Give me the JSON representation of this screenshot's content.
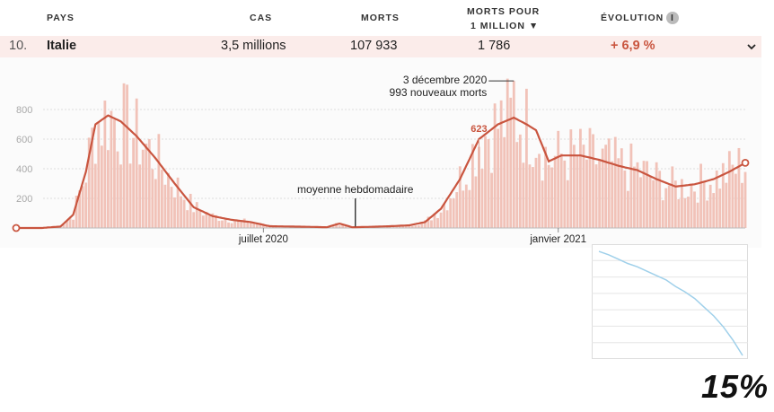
{
  "table": {
    "headers": {
      "country": "PAYS",
      "cases": "CAS",
      "deaths": "MORTS",
      "deaths_per_million_line1": "MORTS POUR",
      "deaths_per_million_line2": "1 MILLION ▼",
      "evolution": "ÉVOLUTION"
    },
    "row": {
      "rank": "10.",
      "country": "Italie",
      "cases": "3,5 millions",
      "deaths": "107 933",
      "deaths_per_million": "1 786",
      "evolution": "+ 6,9 %"
    }
  },
  "colors": {
    "bar": "#f1c2b8",
    "line": "#c9553f",
    "row_bg": "#fbecea",
    "evolution_text": "#c9553f",
    "mini_line": "#9fd0ea"
  },
  "chart_data": {
    "type": "bar",
    "y_ticks": [
      200,
      400,
      600,
      800
    ],
    "ylim": [
      0,
      1000
    ],
    "x_tick_labels": [
      "juillet 2020",
      "janvier 2021"
    ],
    "annotations": {
      "peak_date": "3 décembre 2020",
      "peak_text": "993 nouveaux morts",
      "peak_value": 993,
      "avg_label": "moyenne hebdomadaire",
      "avg_value_label": "623",
      "avg_value": 623
    },
    "weekly_average_points": [
      [
        0,
        0
      ],
      [
        8,
        0
      ],
      [
        14,
        10
      ],
      [
        18,
        90
      ],
      [
        22,
        380
      ],
      [
        25,
        700
      ],
      [
        29,
        760
      ],
      [
        33,
        720
      ],
      [
        38,
        620
      ],
      [
        44,
        470
      ],
      [
        50,
        300
      ],
      [
        56,
        140
      ],
      [
        62,
        80
      ],
      [
        68,
        55
      ],
      [
        74,
        40
      ],
      [
        80,
        12
      ],
      [
        86,
        10
      ],
      [
        92,
        8
      ],
      [
        98,
        5
      ],
      [
        102,
        30
      ],
      [
        106,
        5
      ],
      [
        112,
        8
      ],
      [
        118,
        12
      ],
      [
        124,
        18
      ],
      [
        129,
        40
      ],
      [
        134,
        130
      ],
      [
        140,
        330
      ],
      [
        146,
        600
      ],
      [
        152,
        700
      ],
      [
        157,
        745
      ],
      [
        161,
        700
      ],
      [
        164,
        660
      ],
      [
        168,
        450
      ],
      [
        172,
        490
      ],
      [
        178,
        490
      ],
      [
        184,
        460
      ],
      [
        190,
        420
      ],
      [
        196,
        390
      ],
      [
        202,
        330
      ],
      [
        208,
        280
      ],
      [
        214,
        295
      ],
      [
        220,
        330
      ],
      [
        225,
        380
      ],
      [
        230,
        440
      ]
    ],
    "x_domain": [
      0,
      230
    ]
  },
  "mini_chart": {
    "type": "line",
    "points": [
      [
        0,
        5
      ],
      [
        10,
        8
      ],
      [
        20,
        12
      ],
      [
        30,
        16
      ],
      [
        40,
        19
      ],
      [
        50,
        23
      ],
      [
        60,
        27
      ],
      [
        70,
        31
      ],
      [
        80,
        37
      ],
      [
        90,
        42
      ],
      [
        100,
        48
      ],
      [
        110,
        56
      ],
      [
        120,
        64
      ],
      [
        130,
        74
      ],
      [
        140,
        86
      ],
      [
        150,
        100
      ]
    ]
  },
  "overlay": {
    "percent": "15%"
  }
}
